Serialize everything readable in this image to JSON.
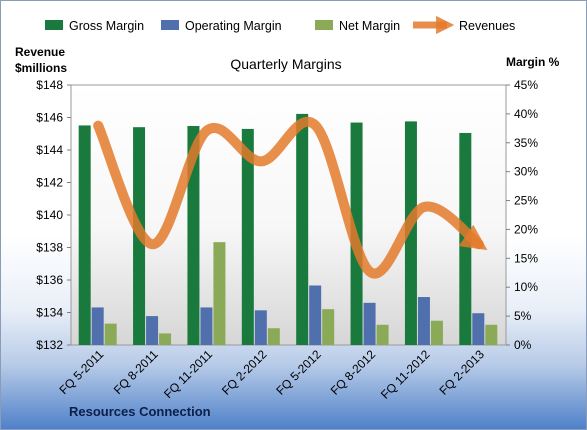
{
  "chart_data": {
    "type": "bar",
    "title": "Quarterly Margins",
    "ylabel_left": [
      "Revenue",
      "$millions"
    ],
    "ylabel_right": "Margin %",
    "footer": "Resources Connection",
    "categories": [
      "FQ 5-2011",
      "FQ 8-2011",
      "FQ 11-2011",
      "FQ 2-2012",
      "FQ 5-2012",
      "FQ 8-2012",
      "FQ 11-2012",
      "FQ 2-2013"
    ],
    "y_left": {
      "min": 132,
      "max": 148,
      "step": 2,
      "prefix": "$"
    },
    "y_right": {
      "min": 0,
      "max": 45,
      "step": 5,
      "suffix": "%"
    },
    "series": [
      {
        "name": "Gross Margin",
        "axis": "right",
        "kind": "bar",
        "color": "#1a7a3e",
        "values": [
          38.0,
          37.7,
          37.9,
          37.4,
          40.0,
          38.5,
          38.7,
          36.7
        ]
      },
      {
        "name": "Operating Margin",
        "axis": "right",
        "kind": "bar",
        "color": "#4f6fad",
        "values": [
          6.5,
          5.0,
          6.5,
          6.0,
          10.3,
          7.3,
          8.3,
          5.5
        ]
      },
      {
        "name": "Net Margin",
        "axis": "right",
        "kind": "bar",
        "color": "#8aaa58",
        "values": [
          3.7,
          2.0,
          17.8,
          2.9,
          6.2,
          3.5,
          4.2,
          3.5
        ]
      },
      {
        "name": "Revenues",
        "axis": "left",
        "kind": "line",
        "color": "#e37a2c",
        "values": [
          145.5,
          138.2,
          145.2,
          143.3,
          145.5,
          136.5,
          140.5,
          138.2
        ]
      }
    ],
    "legend_position": "top",
    "grid": false
  }
}
